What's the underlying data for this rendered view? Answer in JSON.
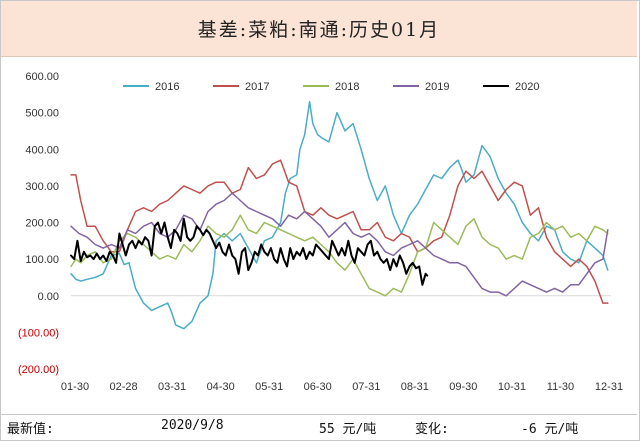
{
  "title": "基差:菜粕:南通:历史01月",
  "footer": {
    "latest_label": "最新值:",
    "latest_date": "2020/9/8",
    "latest_value": "55 元/吨",
    "change_label": "变化:",
    "change_value": "-6 元/吨"
  },
  "chart_data": {
    "type": "line",
    "x_tick_labels": [
      "01-30",
      "02-28",
      "03-31",
      "04-30",
      "05-31",
      "06-30",
      "07-31",
      "08-31",
      "09-30",
      "10-31",
      "11-30",
      "12-31"
    ],
    "y_ticks": [
      {
        "value": 600,
        "label": "600.00"
      },
      {
        "value": 500,
        "label": "500.00"
      },
      {
        "value": 400,
        "label": "400.00"
      },
      {
        "value": 300,
        "label": "300.00"
      },
      {
        "value": 200,
        "label": "200.00"
      },
      {
        "value": 100,
        "label": "100.00"
      },
      {
        "value": 0,
        "label": "0.00"
      },
      {
        "value": -100,
        "label": "(100.00)"
      },
      {
        "value": -200,
        "label": "(200.00)"
      }
    ],
    "ylim": [
      -200,
      600
    ],
    "xlim": [
      30,
      365
    ],
    "grid": false,
    "legend_position": "top",
    "negative_label_color": "#c00000",
    "series": [
      {
        "name": "2016",
        "color": "#4bacc6",
        "x": [
          30,
          33,
          36,
          40,
          45,
          50,
          55,
          60,
          63,
          66,
          70,
          75,
          80,
          85,
          90,
          92,
          95,
          100,
          105,
          110,
          115,
          118,
          120,
          125,
          130,
          135,
          140,
          145,
          150,
          155,
          160,
          163,
          166,
          170,
          172,
          175,
          178,
          180,
          183,
          186,
          190,
          195,
          200,
          205,
          210,
          215,
          220,
          225,
          230,
          235,
          240,
          245,
          250,
          255,
          260,
          265,
          270,
          272,
          275,
          280,
          285,
          290,
          295,
          300,
          305,
          310,
          315,
          320,
          325,
          330,
          335,
          340,
          345,
          350,
          355,
          360,
          363
        ],
        "y": [
          60,
          45,
          40,
          45,
          50,
          60,
          110,
          115,
          85,
          90,
          20,
          -20,
          -40,
          -30,
          -20,
          -40,
          -80,
          -90,
          -70,
          -20,
          0,
          60,
          150,
          170,
          150,
          170,
          130,
          90,
          150,
          160,
          200,
          280,
          320,
          330,
          400,
          440,
          530,
          470,
          440,
          430,
          420,
          500,
          450,
          470,
          400,
          320,
          260,
          300,
          220,
          170,
          220,
          250,
          290,
          330,
          320,
          350,
          370,
          350,
          310,
          330,
          410,
          380,
          320,
          280,
          250,
          200,
          170,
          150,
          190,
          180,
          120,
          100,
          90,
          150,
          130,
          110,
          70
        ]
      },
      {
        "name": "2017",
        "color": "#c0504d",
        "x": [
          30,
          33,
          36,
          40,
          45,
          50,
          55,
          60,
          65,
          70,
          75,
          80,
          85,
          90,
          95,
          100,
          105,
          110,
          115,
          120,
          125,
          130,
          135,
          140,
          145,
          150,
          155,
          160,
          165,
          170,
          175,
          180,
          185,
          190,
          195,
          200,
          205,
          210,
          215,
          220,
          225,
          230,
          235,
          240,
          245,
          250,
          255,
          260,
          265,
          270,
          275,
          280,
          285,
          290,
          295,
          300,
          305,
          310,
          315,
          320,
          325,
          330,
          335,
          340,
          345,
          350,
          355,
          360,
          363
        ],
        "y": [
          330,
          330,
          260,
          190,
          190,
          150,
          120,
          120,
          180,
          230,
          240,
          230,
          250,
          260,
          280,
          300,
          290,
          280,
          300,
          310,
          310,
          280,
          290,
          350,
          320,
          330,
          360,
          370,
          310,
          300,
          230,
          220,
          240,
          220,
          210,
          220,
          230,
          180,
          180,
          200,
          160,
          150,
          170,
          160,
          120,
          130,
          150,
          160,
          220,
          300,
          340,
          320,
          340,
          300,
          260,
          290,
          310,
          300,
          220,
          240,
          160,
          120,
          100,
          80,
          100,
          80,
          40,
          -20,
          -20
        ]
      },
      {
        "name": "2018",
        "color": "#9bbb59",
        "x": [
          30,
          33,
          36,
          40,
          45,
          50,
          55,
          60,
          65,
          70,
          75,
          80,
          85,
          90,
          95,
          100,
          105,
          110,
          115,
          120,
          125,
          130,
          135,
          140,
          145,
          150,
          155,
          160,
          165,
          170,
          175,
          180,
          185,
          190,
          195,
          200,
          205,
          210,
          215,
          220,
          225,
          230,
          235,
          240,
          245,
          250,
          255,
          260,
          265,
          270,
          275,
          280,
          285,
          290,
          295,
          300,
          305,
          310,
          315,
          320,
          325,
          330,
          335,
          340,
          345,
          350,
          355,
          360,
          363
        ],
        "y": [
          80,
          100,
          90,
          110,
          120,
          90,
          100,
          150,
          170,
          160,
          140,
          120,
          100,
          110,
          100,
          140,
          120,
          150,
          190,
          170,
          160,
          180,
          220,
          180,
          170,
          200,
          190,
          180,
          170,
          160,
          150,
          160,
          140,
          120,
          90,
          70,
          100,
          60,
          20,
          10,
          0,
          20,
          10,
          60,
          120,
          130,
          200,
          180,
          160,
          140,
          190,
          210,
          160,
          140,
          130,
          100,
          110,
          100,
          160,
          170,
          200,
          180,
          190,
          160,
          170,
          150,
          190,
          180,
          170
        ]
      },
      {
        "name": "2019",
        "color": "#8064a2",
        "x": [
          30,
          35,
          40,
          45,
          50,
          55,
          60,
          65,
          70,
          75,
          80,
          85,
          90,
          95,
          100,
          105,
          110,
          115,
          120,
          125,
          130,
          135,
          140,
          145,
          150,
          155,
          160,
          165,
          170,
          175,
          180,
          185,
          190,
          195,
          200,
          205,
          210,
          215,
          220,
          225,
          230,
          235,
          240,
          245,
          250,
          255,
          260,
          265,
          270,
          275,
          280,
          285,
          290,
          295,
          300,
          305,
          310,
          315,
          320,
          325,
          330,
          335,
          340,
          345,
          350,
          355,
          360,
          363
        ],
        "y": [
          190,
          170,
          160,
          140,
          130,
          140,
          130,
          180,
          170,
          190,
          200,
          170,
          160,
          180,
          220,
          210,
          180,
          230,
          250,
          260,
          280,
          260,
          240,
          230,
          220,
          210,
          190,
          220,
          210,
          230,
          210,
          190,
          160,
          180,
          200,
          170,
          160,
          170,
          150,
          120,
          110,
          130,
          140,
          150,
          130,
          110,
          100,
          90,
          90,
          80,
          50,
          20,
          10,
          10,
          0,
          20,
          40,
          30,
          20,
          10,
          20,
          10,
          30,
          30,
          60,
          90,
          100,
          180
        ]
      },
      {
        "name": "2020",
        "color": "#000000",
        "x": [
          30,
          32,
          34,
          36,
          38,
          40,
          42,
          44,
          46,
          48,
          50,
          52,
          54,
          56,
          58,
          60,
          62,
          64,
          66,
          68,
          70,
          72,
          74,
          76,
          78,
          80,
          82,
          84,
          86,
          88,
          90,
          92,
          94,
          96,
          98,
          100,
          102,
          104,
          106,
          108,
          110,
          112,
          114,
          116,
          118,
          120,
          122,
          124,
          126,
          128,
          130,
          132,
          134,
          136,
          138,
          140,
          142,
          144,
          146,
          148,
          150,
          152,
          154,
          156,
          158,
          160,
          162,
          164,
          166,
          168,
          170,
          172,
          174,
          176,
          178,
          180,
          182,
          184,
          186,
          188,
          190,
          192,
          194,
          196,
          198,
          200,
          202,
          204,
          206,
          208,
          210,
          212,
          214,
          216,
          218,
          220,
          222,
          224,
          226,
          228,
          230,
          232,
          234,
          236,
          238,
          240,
          242,
          244,
          246,
          248,
          250,
          251
        ],
        "y": [
          110,
          100,
          150,
          95,
          120,
          105,
          110,
          100,
          115,
          100,
          110,
          95,
          120,
          110,
          90,
          170,
          140,
          110,
          140,
          150,
          130,
          150,
          140,
          160,
          150,
          110,
          190,
          200,
          170,
          200,
          160,
          130,
          180,
          170,
          150,
          210,
          160,
          150,
          160,
          190,
          180,
          165,
          180,
          170,
          150,
          130,
          145,
          120,
          110,
          140,
          110,
          100,
          60,
          120,
          130,
          70,
          90,
          120,
          110,
          140,
          120,
          110,
          130,
          100,
          90,
          130,
          100,
          80,
          130,
          100,
          120,
          110,
          130,
          100,
          120,
          110,
          140,
          130,
          120,
          110,
          100,
          150,
          130,
          110,
          130,
          110,
          150,
          110,
          90,
          130,
          120,
          110,
          140,
          150,
          110,
          120,
          100,
          90,
          100,
          70,
          100,
          80,
          110,
          90,
          60,
          80,
          90,
          75,
          80,
          30,
          60,
          55
        ]
      }
    ]
  }
}
